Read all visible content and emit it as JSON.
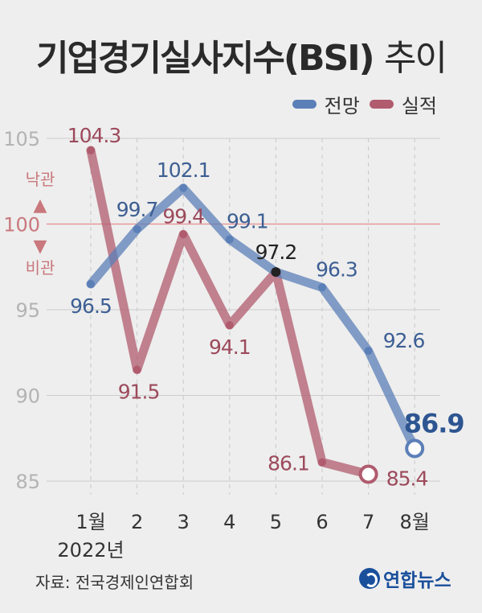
{
  "title_main": "기업경기실사지수(BSI)",
  "title_suffix": "추이",
  "legend": {
    "forecast": "전망",
    "actual": "실적"
  },
  "colors": {
    "forecast": "#5b7fb7",
    "actual": "#b05b6e",
    "reference": "#e58d8d",
    "background": "#eeeeee"
  },
  "reference_labels": {
    "optimism": "낙관",
    "pessimism": "비관",
    "up_arrow": "▲",
    "down_arrow": "▼"
  },
  "source": "자료: 전국경제인연합회",
  "logo_text": "연합뉴스",
  "year_label": "2022년",
  "chart_data": {
    "type": "line",
    "x": [
      "1월",
      "2",
      "3",
      "4",
      "5",
      "6",
      "7",
      "8월"
    ],
    "ylim": [
      84,
      107
    ],
    "yticks": [
      85,
      90,
      95,
      100,
      105
    ],
    "reference_line": 100,
    "grid": true,
    "legend_position": "top-right",
    "series": [
      {
        "name": "전망",
        "values": [
          96.5,
          99.7,
          102.1,
          99.1,
          97.2,
          96.3,
          92.6,
          86.9
        ],
        "labels": [
          "96.5",
          "99.7",
          "102.1",
          "99.1",
          "97.2",
          "96.3",
          "92.6",
          "86.9"
        ]
      },
      {
        "name": "실적",
        "values": [
          104.3,
          91.5,
          99.4,
          94.1,
          97.2,
          86.1,
          85.4,
          null
        ],
        "labels": [
          "104.3",
          "91.5",
          "99.4",
          "94.1",
          "97.2",
          "86.1",
          "85.4",
          null
        ]
      }
    ]
  }
}
